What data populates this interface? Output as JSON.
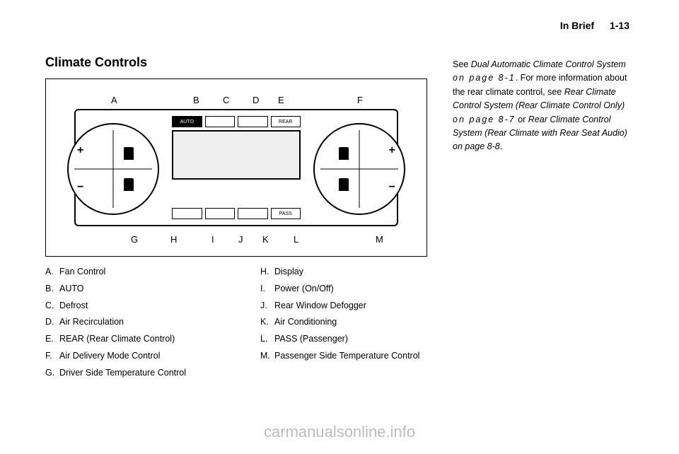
{
  "header": {
    "section": "In Brief",
    "page": "1-13"
  },
  "title": "Climate Controls",
  "diagram": {
    "callouts_top": [
      "A",
      "B",
      "C",
      "D",
      "E",
      "F"
    ],
    "callouts_bottom": [
      "G",
      "H",
      "I",
      "J",
      "K",
      "L",
      "M"
    ],
    "buttons_top": [
      "AUTO",
      "",
      "",
      "REAR"
    ],
    "buttons_bottom": [
      "",
      "",
      "",
      "PASS"
    ]
  },
  "legend_left": [
    {
      "letter": "A.",
      "text": "Fan Control"
    },
    {
      "letter": "B.",
      "text": "AUTO"
    },
    {
      "letter": "C.",
      "text": "Defrost"
    },
    {
      "letter": "D.",
      "text": "Air Recirculation"
    },
    {
      "letter": "E.",
      "text": "REAR (Rear Climate Control)"
    },
    {
      "letter": "F.",
      "text": "Air Delivery Mode Control"
    },
    {
      "letter": "G.",
      "text": "Driver Side Temperature Control"
    }
  ],
  "legend_right": [
    {
      "letter": "H.",
      "text": "Display"
    },
    {
      "letter": "I.",
      "text": "Power (On/Off)"
    },
    {
      "letter": "J.",
      "text": "Rear Window Defogger"
    },
    {
      "letter": "K.",
      "text": "Air Conditioning"
    },
    {
      "letter": "L.",
      "text": "PASS (Passenger)"
    },
    {
      "letter": "M.",
      "text": "Passenger Side Temperature Control"
    }
  ],
  "reference": {
    "pre1": "See ",
    "ital1": "Dual Automatic Climate Control System ",
    "page1": "on page 8-1",
    "post1": ". For more information about the rear climate control, see ",
    "ital2": "Rear Climate Control System (Rear Climate Control Only) ",
    "page2": "on page 8-7",
    "mid": " or ",
    "ital3": "Rear Climate Control System (Rear Climate with Rear Seat Audio) on page 8-8",
    "end": "."
  },
  "watermark": "carmanualsonline.info"
}
